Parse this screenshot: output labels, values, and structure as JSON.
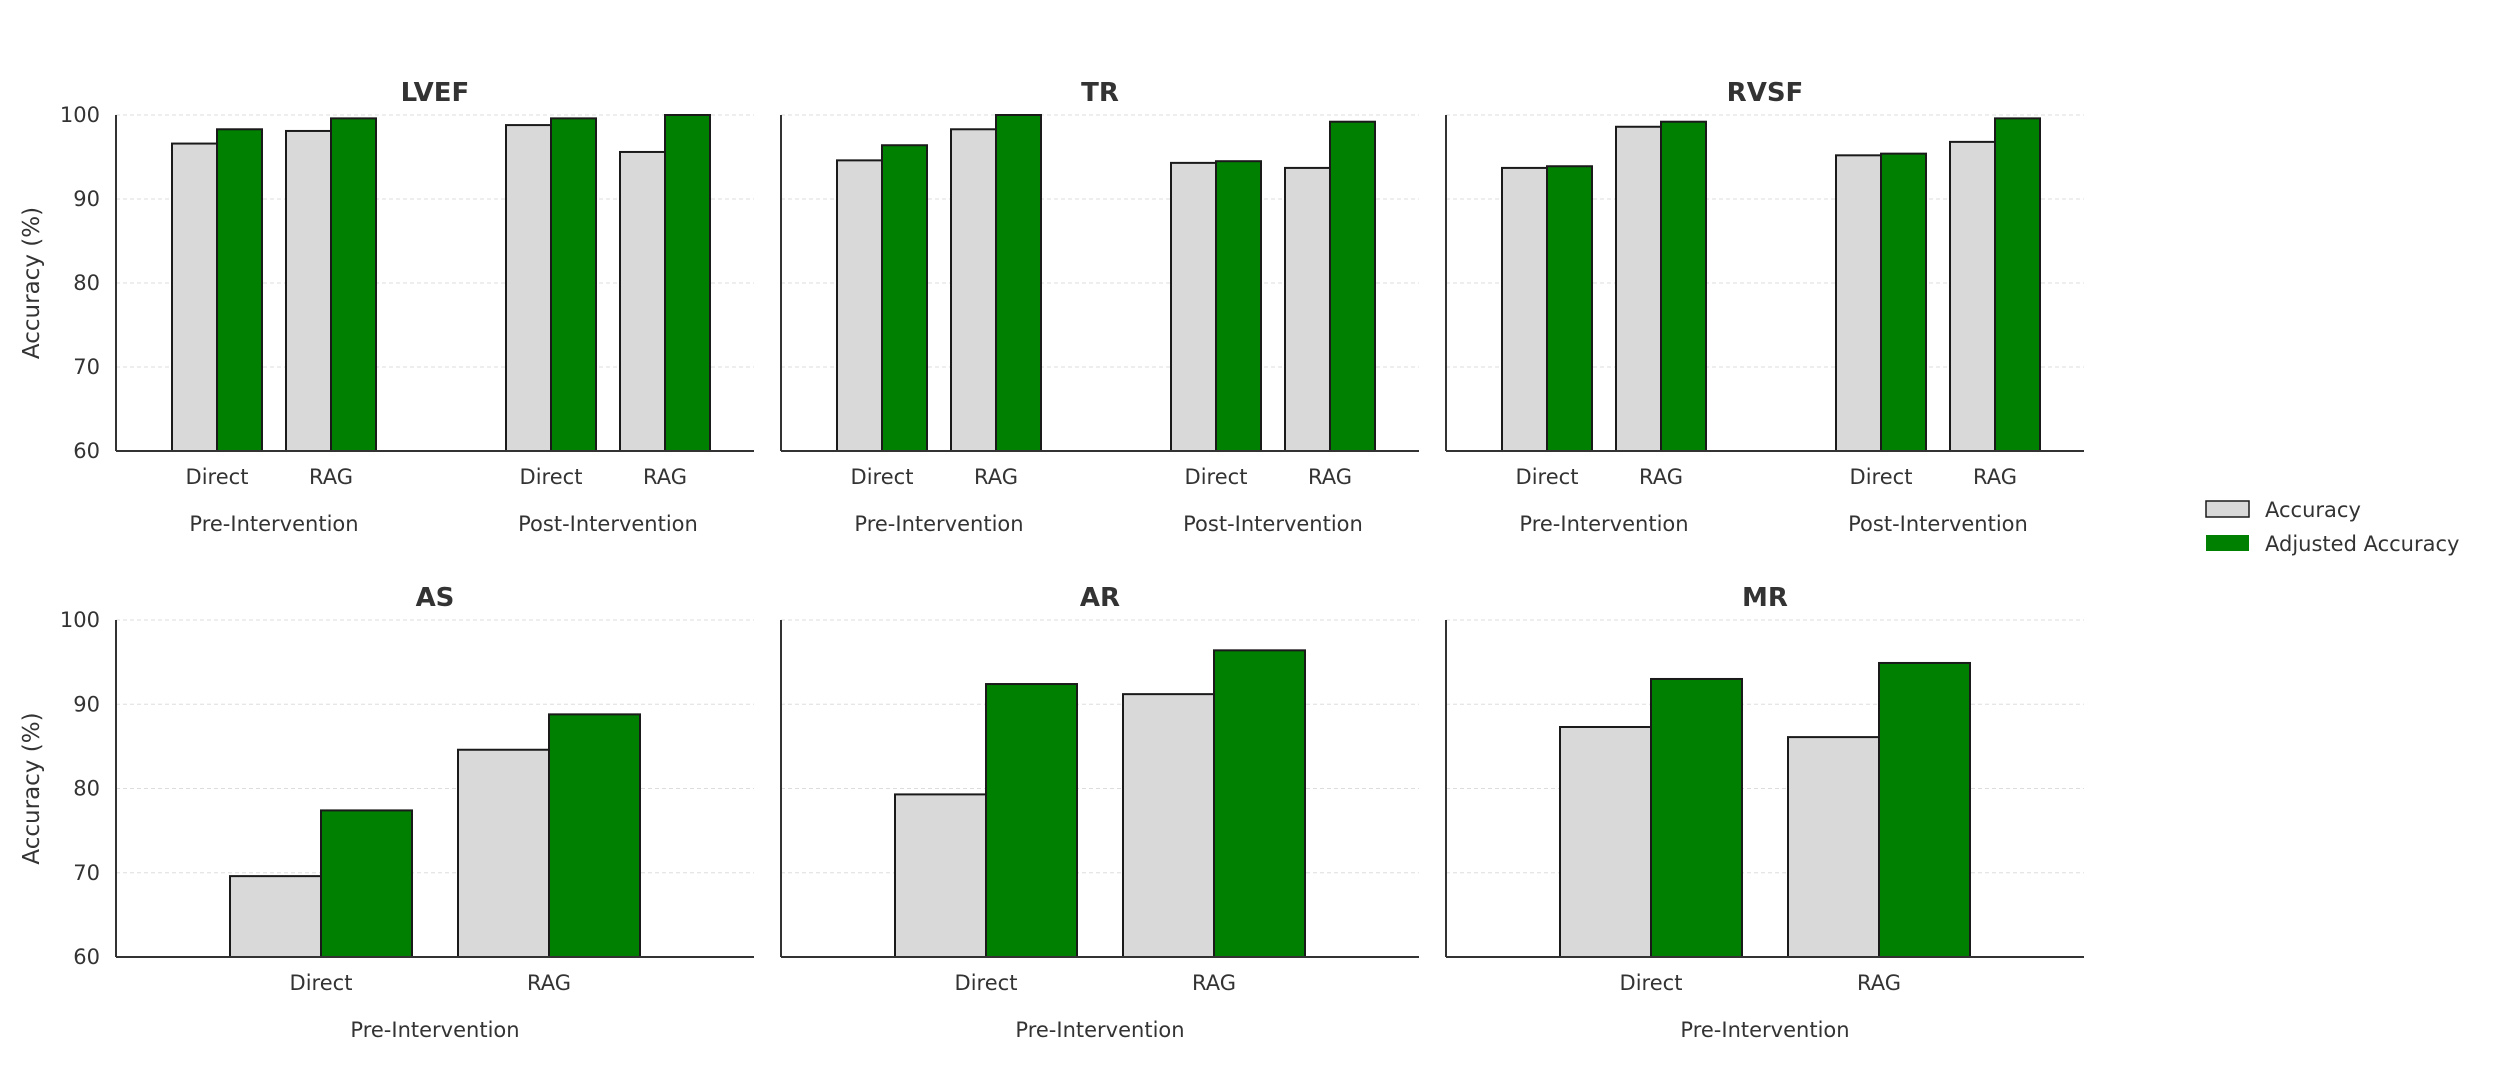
{
  "colors": {
    "accuracy": "#d9d9d9",
    "adjusted": "#008000",
    "edge": "#1a1a1a",
    "axis": "#333333",
    "grid": "#dddddd"
  },
  "legend": {
    "placement": "right",
    "entries": [
      {
        "name": "Accuracy",
        "color_key": "accuracy"
      },
      {
        "name": "Adjusted Accuracy",
        "color_key": "adjusted"
      }
    ]
  },
  "chart_data": [
    {
      "type": "bar",
      "title": "LVEF",
      "ylabel": "Accuracy (%)",
      "ylim": [
        60,
        100
      ],
      "yticks": [
        60,
        70,
        80,
        90,
        100
      ],
      "grid": true,
      "groups": [
        {
          "name": "Pre-Intervention",
          "categories": [
            "Direct",
            "RAG"
          ],
          "series": [
            {
              "name": "Accuracy",
              "values": [
                96.6,
                98.1
              ]
            },
            {
              "name": "Adjusted Accuracy",
              "values": [
                98.3,
                99.6
              ]
            }
          ]
        },
        {
          "name": "Post-Intervention",
          "categories": [
            "Direct",
            "RAG"
          ],
          "series": [
            {
              "name": "Accuracy",
              "values": [
                98.8,
                95.6
              ]
            },
            {
              "name": "Adjusted Accuracy",
              "values": [
                99.6,
                100.0
              ]
            }
          ]
        }
      ]
    },
    {
      "type": "bar",
      "title": "TR",
      "ylabel": "",
      "ylim": [
        60,
        100
      ],
      "yticks": [
        60,
        70,
        80,
        90,
        100
      ],
      "grid": true,
      "groups": [
        {
          "name": "Pre-Intervention",
          "categories": [
            "Direct",
            "RAG"
          ],
          "series": [
            {
              "name": "Accuracy",
              "values": [
                94.6,
                98.3
              ]
            },
            {
              "name": "Adjusted Accuracy",
              "values": [
                96.4,
                100.0
              ]
            }
          ]
        },
        {
          "name": "Post-Intervention",
          "categories": [
            "Direct",
            "RAG"
          ],
          "series": [
            {
              "name": "Accuracy",
              "values": [
                94.3,
                93.7
              ]
            },
            {
              "name": "Adjusted Accuracy",
              "values": [
                94.5,
                99.2
              ]
            }
          ]
        }
      ]
    },
    {
      "type": "bar",
      "title": "RVSF",
      "ylabel": "",
      "ylim": [
        60,
        100
      ],
      "yticks": [
        60,
        70,
        80,
        90,
        100
      ],
      "grid": true,
      "groups": [
        {
          "name": "Pre-Intervention",
          "categories": [
            "Direct",
            "RAG"
          ],
          "series": [
            {
              "name": "Accuracy",
              "values": [
                93.7,
                98.6
              ]
            },
            {
              "name": "Adjusted Accuracy",
              "values": [
                93.9,
                99.2
              ]
            }
          ]
        },
        {
          "name": "Post-Intervention",
          "categories": [
            "Direct",
            "RAG"
          ],
          "series": [
            {
              "name": "Accuracy",
              "values": [
                95.2,
                96.8
              ]
            },
            {
              "name": "Adjusted Accuracy",
              "values": [
                95.4,
                99.6
              ]
            }
          ]
        }
      ]
    },
    {
      "type": "bar",
      "title": "AS",
      "ylabel": "Accuracy (%)",
      "ylim": [
        60,
        100
      ],
      "yticks": [
        60,
        70,
        80,
        90,
        100
      ],
      "grid": true,
      "groups": [
        {
          "name": "Pre-Intervention",
          "categories": [
            "Direct",
            "RAG"
          ],
          "series": [
            {
              "name": "Accuracy",
              "values": [
                69.6,
                84.6
              ]
            },
            {
              "name": "Adjusted Accuracy",
              "values": [
                77.4,
                88.8
              ]
            }
          ]
        }
      ]
    },
    {
      "type": "bar",
      "title": "AR",
      "ylabel": "",
      "ylim": [
        60,
        100
      ],
      "yticks": [
        60,
        70,
        80,
        90,
        100
      ],
      "grid": true,
      "groups": [
        {
          "name": "Pre-Intervention",
          "categories": [
            "Direct",
            "RAG"
          ],
          "series": [
            {
              "name": "Accuracy",
              "values": [
                79.3,
                91.2
              ]
            },
            {
              "name": "Adjusted Accuracy",
              "values": [
                92.4,
                96.4
              ]
            }
          ]
        }
      ]
    },
    {
      "type": "bar",
      "title": "MR",
      "ylabel": "",
      "ylim": [
        60,
        100
      ],
      "yticks": [
        60,
        70,
        80,
        90,
        100
      ],
      "grid": true,
      "groups": [
        {
          "name": "Pre-Intervention",
          "categories": [
            "Direct",
            "RAG"
          ],
          "series": [
            {
              "name": "Accuracy",
              "values": [
                87.3,
                86.1
              ]
            },
            {
              "name": "Adjusted Accuracy",
              "values": [
                93.0,
                94.9
              ]
            }
          ]
        }
      ]
    }
  ]
}
